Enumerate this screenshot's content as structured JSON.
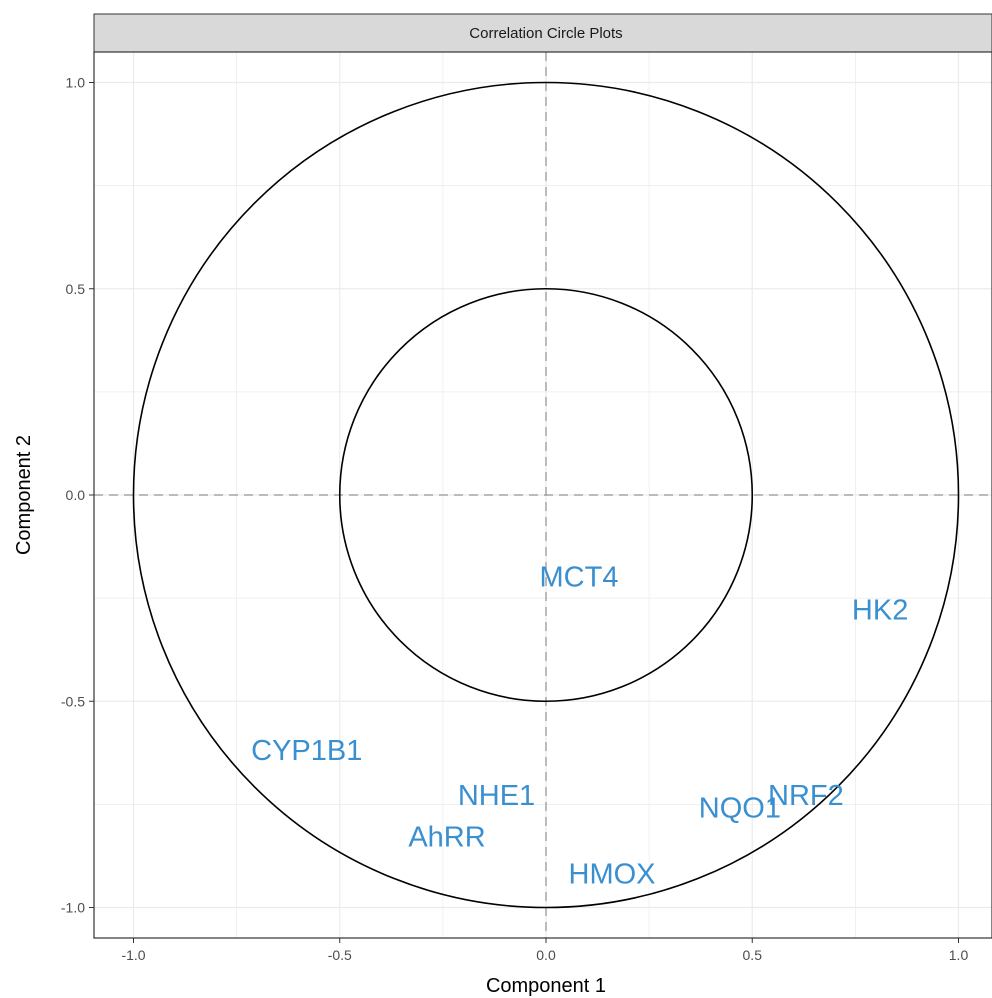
{
  "strip_title": "Correlation Circle Plots",
  "colors": {
    "label": "#3a8fd0",
    "strip_fill": "#d9d9d9",
    "grid": "#ebebeb",
    "circle": "#000000",
    "reference_line": "#a6a6a6"
  },
  "chart_data": {
    "type": "scatter",
    "title": "Correlation Circle Plots",
    "xlabel": "Component  1",
    "ylabel": "Component  2",
    "xlim": [
      -1.1,
      1.1
    ],
    "ylim": [
      -1.1,
      1.1
    ],
    "x_ticks": [
      -1.0,
      -0.5,
      0.0,
      0.5,
      1.0
    ],
    "x_tick_labels": [
      "-1.0",
      "-0.5",
      "0.0",
      "0.5",
      "1.0"
    ],
    "y_ticks": [
      -1.0,
      -0.5,
      0.0,
      0.5,
      1.0
    ],
    "y_tick_labels": [
      "-1.0",
      "-0.5",
      "0.0",
      "0.5",
      "1.0"
    ],
    "grid": true,
    "circles": [
      1.0,
      0.5
    ],
    "reference_lines": {
      "x": 0,
      "y": 0,
      "style": "dashed"
    },
    "points": [
      {
        "label": "MCT4",
        "x": 0.08,
        "y": -0.2
      },
      {
        "label": "HK2",
        "x": 0.81,
        "y": -0.28
      },
      {
        "label": "CYP1B1",
        "x": -0.58,
        "y": -0.62
      },
      {
        "label": "NHE1",
        "x": -0.12,
        "y": -0.73
      },
      {
        "label": "NRF2",
        "x": 0.63,
        "y": -0.73
      },
      {
        "label": "NQO1",
        "x": 0.47,
        "y": -0.76
      },
      {
        "label": "AhRR",
        "x": -0.24,
        "y": -0.83
      },
      {
        "label": "HMOX",
        "x": 0.16,
        "y": -0.92
      }
    ]
  }
}
